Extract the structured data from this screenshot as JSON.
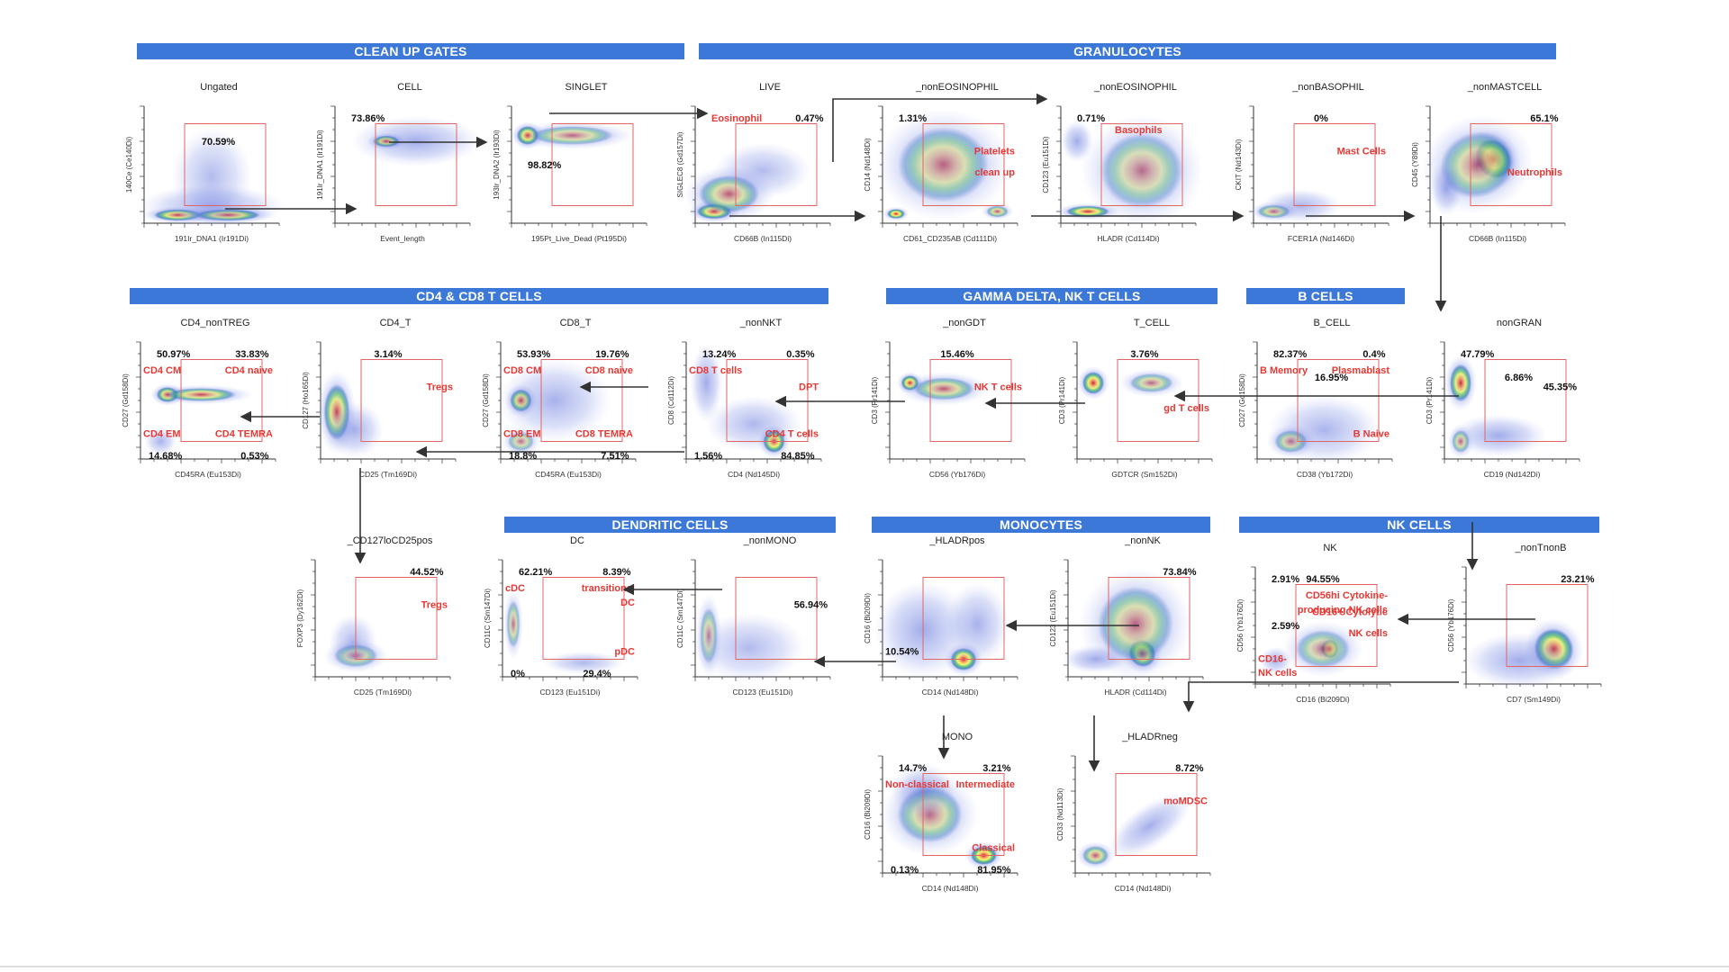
{
  "section_headers": [
    {
      "key": "clean_up",
      "label": "CLEAN UP GATES"
    },
    {
      "key": "granulocytes",
      "label": "GRANULOCYTES"
    },
    {
      "key": "t_cells",
      "label": "CD4 & CD8 T CELLS"
    },
    {
      "key": "gd_nk_t",
      "label": "GAMMA DELTA, NK T CELLS"
    },
    {
      "key": "b_cells",
      "label": "B CELLS"
    },
    {
      "key": "dendritic",
      "label": "DENDRITIC CELLS"
    },
    {
      "key": "monocytes",
      "label": "MONOCYTES"
    },
    {
      "key": "nk_cells",
      "label": "NK CELLS"
    }
  ],
  "plots": [
    {
      "id": "ungated",
      "title": "Ungated",
      "xlabel": "191Ir_DNA1 (Ir191Di)",
      "ylabel": "140Ce (Ce140Di)",
      "blobs": "ungated",
      "labels": [
        {
          "text": "70.59%",
          "kind": "pct",
          "pos": "mid"
        }
      ]
    },
    {
      "id": "cell",
      "title": "CELL",
      "xlabel": "Event_length",
      "ylabel": "191Ir_DNA1 (Ir191Di)",
      "blobs": "cell",
      "labels": [
        {
          "text": "73.86%",
          "kind": "pct",
          "pos": "tl"
        }
      ]
    },
    {
      "id": "singlet",
      "title": "SINGLET",
      "xlabel": "195Pt_Live_Dead (Pt195Di)",
      "ylabel": "193Ir_DNA2 (Ir193Di)",
      "blobs": "singlet",
      "labels": [
        {
          "text": "98.82%",
          "kind": "pct",
          "pos": "ml"
        }
      ]
    },
    {
      "id": "live",
      "title": "LIVE",
      "xlabel": "CD66B (In115Di)",
      "ylabel": "SIGLEC8 (Gd157Di)",
      "blobs": "live",
      "labels": [
        {
          "text": "Eosinophil",
          "kind": "pop",
          "pos": "tl"
        },
        {
          "text": "0.47%",
          "kind": "pct",
          "pos": "tr"
        }
      ]
    },
    {
      "id": "noneos1",
      "title": "_nonEOSINOPHIL",
      "xlabel": "CD61_CD235AB (Cd111Di)",
      "ylabel": "CD14 (Nd148Di)",
      "blobs": "noneos1",
      "labels": [
        {
          "text": "1.31%",
          "kind": "pct",
          "pos": "tl"
        },
        {
          "text": "Platelets",
          "kind": "pop",
          "pos": "r1"
        },
        {
          "text": "clean up",
          "kind": "pop",
          "pos": "r2"
        }
      ]
    },
    {
      "id": "noneos2",
      "title": "_nonEOSINOPHIL",
      "xlabel": "HLADR (Cd114Di)",
      "ylabel": "CD123 (Eu151Di)",
      "blobs": "noneos2",
      "labels": [
        {
          "text": "0.71%",
          "kind": "pct",
          "pos": "tl"
        },
        {
          "text": "Basophils",
          "kind": "pop",
          "pos": "t2"
        }
      ]
    },
    {
      "id": "nonbaso",
      "title": "_nonBASOPHIL",
      "xlabel": "FCER1A (Nd146Di)",
      "ylabel": "CKIT (Nd143Di)",
      "blobs": "nonbaso",
      "labels": [
        {
          "text": "0%",
          "kind": "pct",
          "pos": "tm"
        },
        {
          "text": "Mast Cells",
          "kind": "pop",
          "pos": "r1"
        }
      ]
    },
    {
      "id": "nonmast",
      "title": "_nonMASTCELL",
      "xlabel": "CD66B (In115Di)",
      "ylabel": "CD45 (Y89Di)",
      "blobs": "nonmast",
      "labels": [
        {
          "text": "65.1%",
          "kind": "pct",
          "pos": "tr"
        },
        {
          "text": "Neutrophils",
          "kind": "pop",
          "pos": "r2"
        }
      ]
    },
    {
      "id": "cd4nontreg",
      "title": "CD4_nonTREG",
      "xlabel": "CD45RA (Eu153Di)",
      "ylabel": "CD27 (Gd158Di)",
      "blobs": "cd4nontreg",
      "labels": [
        {
          "text": "50.97%",
          "kind": "pct",
          "pos": "tl"
        },
        {
          "text": "33.83%",
          "kind": "pct",
          "pos": "tr"
        },
        {
          "text": "CD4 CM",
          "kind": "pop",
          "pos": "tl2"
        },
        {
          "text": "CD4 naive",
          "kind": "pop",
          "pos": "tr2"
        },
        {
          "text": "CD4 EM",
          "kind": "pop",
          "pos": "bl2"
        },
        {
          "text": "CD4 TEMRA",
          "kind": "pop",
          "pos": "br2"
        },
        {
          "text": "14.68%",
          "kind": "pct",
          "pos": "bl"
        },
        {
          "text": "0.53%",
          "kind": "pct",
          "pos": "br"
        }
      ]
    },
    {
      "id": "cd4t",
      "title": "CD4_T",
      "xlabel": "CD25 (Tm169Di)",
      "ylabel": "CD127 (Ho165Di)",
      "blobs": "cd4t",
      "labels": [
        {
          "text": "3.14%",
          "kind": "pct",
          "pos": "tm"
        },
        {
          "text": "Tregs",
          "kind": "pop",
          "pos": "r1"
        }
      ]
    },
    {
      "id": "cd8t",
      "title": "CD8_T",
      "xlabel": "CD45RA (Eu153Di)",
      "ylabel": "CD27 (Gd158Di)",
      "blobs": "cd8t",
      "labels": [
        {
          "text": "53.93%",
          "kind": "pct",
          "pos": "tl"
        },
        {
          "text": "19.76%",
          "kind": "pct",
          "pos": "tr"
        },
        {
          "text": "CD8 CM",
          "kind": "pop",
          "pos": "tl2"
        },
        {
          "text": "CD8 naive",
          "kind": "pop",
          "pos": "tr2"
        },
        {
          "text": "CD8 EM",
          "kind": "pop",
          "pos": "bl2"
        },
        {
          "text": "CD8 TEMRA",
          "kind": "pop",
          "pos": "br2"
        },
        {
          "text": "18.8%",
          "kind": "pct",
          "pos": "bl"
        },
        {
          "text": "7.51%",
          "kind": "pct",
          "pos": "br"
        }
      ]
    },
    {
      "id": "nonnkt",
      "title": "_nonNKT",
      "xlabel": "CD4 (Nd145Di)",
      "ylabel": "CD8 (Cd112Di)",
      "blobs": "nonnkt",
      "labels": [
        {
          "text": "13.24%",
          "kind": "pct",
          "pos": "tl"
        },
        {
          "text": "0.35%",
          "kind": "pct",
          "pos": "tr"
        },
        {
          "text": "CD8 T cells",
          "kind": "pop",
          "pos": "tl2"
        },
        {
          "text": "DPT",
          "kind": "pop",
          "pos": "r1"
        },
        {
          "text": "CD4 T cells",
          "kind": "pop",
          "pos": "br2"
        },
        {
          "text": "1.56%",
          "kind": "pct",
          "pos": "bl"
        },
        {
          "text": "84.85%",
          "kind": "pct",
          "pos": "br"
        }
      ]
    },
    {
      "id": "nongdt",
      "title": "_nonGDT",
      "xlabel": "CD56 (Yb176Di)",
      "ylabel": "CD3 (Pr141Di)",
      "blobs": "nongdt",
      "labels": [
        {
          "text": "15.46%",
          "kind": "pct",
          "pos": "tm"
        },
        {
          "text": "NK T cells",
          "kind": "pop",
          "pos": "r1"
        }
      ]
    },
    {
      "id": "tcell",
      "title": "T_CELL",
      "xlabel": "GDTCR (Sm152Di)",
      "ylabel": "CD3 (Pr141Di)",
      "blobs": "tcell",
      "labels": [
        {
          "text": "3.76%",
          "kind": "pct",
          "pos": "tm"
        },
        {
          "text": "gd T cells",
          "kind": "pop",
          "pos": "r2"
        }
      ]
    },
    {
      "id": "bcell",
      "title": "B_CELL",
      "xlabel": "CD38 (Yb172Di)",
      "ylabel": "CD27 (Gd158Di)",
      "blobs": "bcell",
      "labels": [
        {
          "text": "82.37%",
          "kind": "pct",
          "pos": "tl"
        },
        {
          "text": "0.4%",
          "kind": "pct",
          "pos": "tr"
        },
        {
          "text": "B Memory",
          "kind": "pop",
          "pos": "tl2"
        },
        {
          "text": "Plasmablast",
          "kind": "pop",
          "pos": "tr2"
        },
        {
          "text": "16.95%",
          "kind": "pct",
          "pos": "mid"
        },
        {
          "text": "B Naive",
          "kind": "pop",
          "pos": "br2"
        }
      ]
    },
    {
      "id": "nongran",
      "title": "nonGRAN",
      "xlabel": "CD19 (Nd142Di)",
      "ylabel": "CD3 (Pr141Di)",
      "blobs": "nongran",
      "labels": [
        {
          "text": "47.79%",
          "kind": "pct",
          "pos": "tl"
        },
        {
          "text": "45.35%",
          "kind": "pct",
          "pos": "r1"
        },
        {
          "text": "6.86%",
          "kind": "pct",
          "pos": "mid"
        }
      ]
    },
    {
      "id": "cd127lo",
      "title": "_CD127loCD25pos",
      "xlabel": "CD25 (Tm169Di)",
      "ylabel": "FOXP3 (Dy162Di)",
      "blobs": "cd127lo",
      "labels": [
        {
          "text": "44.52%",
          "kind": "pct",
          "pos": "tr"
        },
        {
          "text": "Tregs",
          "kind": "pop",
          "pos": "r1"
        }
      ]
    },
    {
      "id": "dc",
      "title": "DC",
      "xlabel": "CD123 (Eu151Di)",
      "ylabel": "CD11C (Sm147Di)",
      "blobs": "dc",
      "labels": [
        {
          "text": "62.21%",
          "kind": "pct",
          "pos": "tl"
        },
        {
          "text": "8.39%",
          "kind": "pct",
          "pos": "tr"
        },
        {
          "text": "cDC",
          "kind": "pop",
          "pos": "tl2"
        },
        {
          "text": "transitional",
          "kind": "pop",
          "pos": "tr2"
        },
        {
          "text": "DC",
          "kind": "pop",
          "pos": "tr3"
        },
        {
          "text": "pDC",
          "kind": "pop",
          "pos": "br2"
        },
        {
          "text": "0%",
          "kind": "pct",
          "pos": "bl"
        },
        {
          "text": "29.4%",
          "kind": "pct",
          "pos": "bm"
        }
      ]
    },
    {
      "id": "nonmono",
      "title": "_nonMONO",
      "xlabel": "CD123 (Eu151Di)",
      "ylabel": "CD11C (Sm147Di)",
      "blobs": "nonmono",
      "labels": [
        {
          "text": "56.94%",
          "kind": "pct",
          "pos": "r1"
        }
      ]
    },
    {
      "id": "hladrpos",
      "title": "_HLADRpos",
      "xlabel": "CD14 (Nd148Di)",
      "ylabel": "CD16 (Bi209Di)",
      "blobs": "hladrpos",
      "labels": [
        {
          "text": "10.54%",
          "kind": "pct",
          "pos": "bl2"
        }
      ]
    },
    {
      "id": "nonnk",
      "title": "_nonNK",
      "xlabel": "HLADR (Cd114Di)",
      "ylabel": "CD123 (Eu151Di)",
      "blobs": "nonnk",
      "labels": [
        {
          "text": "73.84%",
          "kind": "pct",
          "pos": "tr"
        }
      ]
    },
    {
      "id": "nk",
      "title": "NK",
      "xlabel": "CD16 (Bi209Di)",
      "ylabel": "CD56 (Yb176Di)",
      "blobs": "nk",
      "labels": [
        {
          "text": "2.91%",
          "kind": "pct",
          "pos": "tl"
        },
        {
          "text": "94.55%",
          "kind": "pct",
          "pos": "tm"
        },
        {
          "text": "CD56hi Cytokine-",
          "kind": "pop",
          "pos": "tr2"
        },
        {
          "text": "producing NK cells",
          "kind": "pop",
          "pos": "tr3"
        },
        {
          "text": "2.59%",
          "kind": "pct",
          "pos": "ml"
        },
        {
          "text": "CD16+ Cytolytic",
          "kind": "pop",
          "pos": "r1"
        },
        {
          "text": "NK cells",
          "kind": "pop",
          "pos": "r2"
        },
        {
          "text": "CD16-",
          "kind": "pop",
          "pos": "bl2"
        },
        {
          "text": "NK cells",
          "kind": "pop",
          "pos": "bl3"
        }
      ]
    },
    {
      "id": "nontnonb",
      "title": "_nonTnonB",
      "xlabel": "CD7 (Sm149Di)",
      "ylabel": "CD56 (Yb176Di)",
      "blobs": "nontnonb",
      "labels": [
        {
          "text": "23.21%",
          "kind": "pct",
          "pos": "tr"
        }
      ]
    },
    {
      "id": "mono",
      "title": "MONO",
      "xlabel": "CD14 (Nd148Di)",
      "ylabel": "CD16 (Bi209Di)",
      "blobs": "mono",
      "labels": [
        {
          "text": "14.7%",
          "kind": "pct",
          "pos": "tl"
        },
        {
          "text": "3.21%",
          "kind": "pct",
          "pos": "tr"
        },
        {
          "text": "Non-classical",
          "kind": "pop",
          "pos": "tl2"
        },
        {
          "text": "Intermediate",
          "kind": "pop",
          "pos": "tr2"
        },
        {
          "text": "Classical",
          "kind": "pop",
          "pos": "br2"
        },
        {
          "text": "0.13%",
          "kind": "pct",
          "pos": "bl"
        },
        {
          "text": "81.95%",
          "kind": "pct",
          "pos": "br"
        }
      ]
    },
    {
      "id": "hladrneg",
      "title": "_HLADRneg",
      "xlabel": "CD14 (Nd148Di)",
      "ylabel": "CD33 (Nd113Di)",
      "blobs": "hladrneg",
      "labels": [
        {
          "text": "8.72%",
          "kind": "pct",
          "pos": "tr"
        },
        {
          "text": "moMDSC",
          "kind": "pop",
          "pos": "r1"
        }
      ]
    }
  ],
  "colors": {
    "header_bar": "#3c78d8",
    "gate": "#e06666",
    "pop_label": "#e53935",
    "arrow": "#333333"
  }
}
